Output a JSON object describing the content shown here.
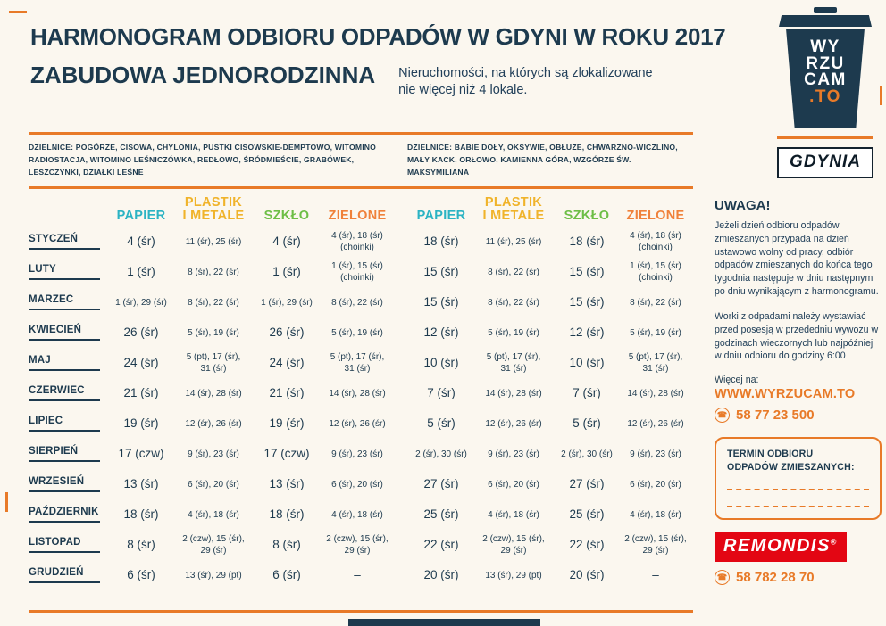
{
  "page": {
    "title": "HARMONOGRAM ODBIORU ODPADÓW W GDYNI W ROKU 2017",
    "subtitle": "ZABUDOWA JEDNORODZINNA",
    "subtitle_note": "Nieruchomości, na których są zlokalizowane\nnie więcej niż 4 lokale."
  },
  "logos": {
    "wyrzucam": {
      "line1": "WY",
      "line2": "RZU",
      "line3": "CAM",
      "suffix": ".TO"
    },
    "gdynia": "GDYNIA"
  },
  "districts": {
    "left": "DZIELNICE: POGÓRZE, CISOWA, CHYLONIA, PUSTKI CISOWSKIE-DEMPTOWO, WITOMINO RADIOSTACJA, WITOMINO LEŚNICZÓWKA, REDŁOWO, ŚRÓDMIEŚCIE, GRABÓWEK, LESZCZYNKI, DZIAŁKI LEŚNE",
    "right": "DZIELNICE: BABIE DOŁY, OKSYWIE, OBŁUŻE, CHWARZNO-WICZLINO, MAŁY KACK, ORŁOWO, KAMIENNA GÓRA, WZGÓRZE ŚW. MAKSYMILIANA"
  },
  "table": {
    "columns": [
      "PAPIER",
      "PLASTIK\nI METALE",
      "SZKŁO",
      "ZIELONE"
    ],
    "colors": {
      "papier": "#2bb3c3",
      "plastik": "#f0b32a",
      "szklo": "#6dbe46",
      "zielone": "#f0813a",
      "accent": "#e87a28",
      "navy": "#1d3a4e"
    },
    "months": [
      "STYCZEŃ",
      "LUTY",
      "MARZEC",
      "KWIECIEŃ",
      "MAJ",
      "CZERWIEC",
      "LIPIEC",
      "SIERPIEŃ",
      "WRZESIEŃ",
      "PAŹDZIERNIK",
      "LISTOPAD",
      "GRUDZIEŃ"
    ],
    "left": [
      [
        "4 (śr)",
        "11 (śr), 25 (śr)",
        "4 (śr)",
        "4 (śr), 18 (śr)\n(choinki)"
      ],
      [
        "1 (śr)",
        "8 (śr), 22 (śr)",
        "1 (śr)",
        "1 (śr), 15 (śr)\n(choinki)"
      ],
      [
        "1 (śr), 29 (śr)",
        "8 (śr), 22 (śr)",
        "1 (śr), 29 (śr)",
        "8 (śr), 22 (śr)"
      ],
      [
        "26 (śr)",
        "5 (śr), 19 (śr)",
        "26 (śr)",
        "5 (śr), 19 (śr)"
      ],
      [
        "24 (śr)",
        "5 (pt), 17 (śr),\n31 (śr)",
        "24 (śr)",
        "5 (pt), 17 (śr),\n31 (śr)"
      ],
      [
        "21 (śr)",
        "14 (śr), 28 (śr)",
        "21 (śr)",
        "14 (śr), 28 (śr)"
      ],
      [
        "19 (śr)",
        "12 (śr), 26 (śr)",
        "19 (śr)",
        "12 (śr), 26 (śr)"
      ],
      [
        "17 (czw)",
        "9 (śr), 23 (śr)",
        "17 (czw)",
        "9 (śr), 23 (śr)"
      ],
      [
        "13 (śr)",
        "6 (śr), 20 (śr)",
        "13 (śr)",
        "6 (śr), 20 (śr)"
      ],
      [
        "18 (śr)",
        "4 (śr), 18 (śr)",
        "18 (śr)",
        "4 (śr), 18 (śr)"
      ],
      [
        "8 (śr)",
        "2 (czw), 15 (śr),\n29 (śr)",
        "8 (śr)",
        "2 (czw), 15 (śr),\n29 (śr)"
      ],
      [
        "6 (śr)",
        "13 (śr), 29 (pt)",
        "6 (śr)",
        "–"
      ]
    ],
    "right": [
      [
        "18 (śr)",
        "11 (śr), 25 (śr)",
        "18 (śr)",
        "4 (śr), 18 (śr)\n(choinki)"
      ],
      [
        "15 (śr)",
        "8 (śr), 22 (śr)",
        "15 (śr)",
        "1 (śr), 15 (śr)\n(choinki)"
      ],
      [
        "15 (śr)",
        "8 (śr), 22 (śr)",
        "15 (śr)",
        "8 (śr), 22 (śr)"
      ],
      [
        "12 (śr)",
        "5 (śr), 19 (śr)",
        "12 (śr)",
        "5 (śr), 19 (śr)"
      ],
      [
        "10 (śr)",
        "5 (pt), 17 (śr),\n31 (śr)",
        "10 (śr)",
        "5 (pt), 17 (śr),\n31 (śr)"
      ],
      [
        "7 (śr)",
        "14 (śr), 28 (śr)",
        "7 (śr)",
        "14 (śr), 28 (śr)"
      ],
      [
        "5 (śr)",
        "12 (śr), 26 (śr)",
        "5 (śr)",
        "12 (śr), 26 (śr)"
      ],
      [
        "2 (śr), 30 (śr)",
        "9 (śr), 23 (śr)",
        "2 (śr), 30 (śr)",
        "9 (śr), 23 (śr)"
      ],
      [
        "27 (śr)",
        "6 (śr), 20 (śr)",
        "27 (śr)",
        "6 (śr), 20 (śr)"
      ],
      [
        "25 (śr)",
        "4 (śr), 18 (śr)",
        "25 (śr)",
        "4 (śr), 18 (śr)"
      ],
      [
        "22 (śr)",
        "2 (czw), 15 (śr),\n29 (śr)",
        "22 (śr)",
        "2 (czw), 15 (śr),\n29 (śr)"
      ],
      [
        "20 (śr)",
        "13 (śr), 29 (pt)",
        "20 (śr)",
        "–"
      ]
    ]
  },
  "sidebar": {
    "uwaga_title": "UWAGA!",
    "para1": "Jeżeli dzień odbioru odpadów zmieszanych przypada na dzień ustawowo wolny od pracy, odbiór odpadów zmieszanych do końca tego tygodnia następuje w dniu następnym po dniu wynikającym z harmonogramu.",
    "para2": "Worki z odpadami należy wystawiać przed posesją w przededniu wywozu w godzinach wieczornych lub najpóźniej w dniu odbioru do godziny 6:00",
    "more_label": "Więcej na:",
    "website": "WWW.WYRZUCAM.TO",
    "phone_icon": "☎",
    "phone1": "58 77 23 500",
    "termin_title": "TERMIN ODBIORU\nODPADÓW ZMIESZANYCH:",
    "remondis": "REMONDIS",
    "remondis_reg": "®",
    "phone2": "58 782 28 70"
  }
}
